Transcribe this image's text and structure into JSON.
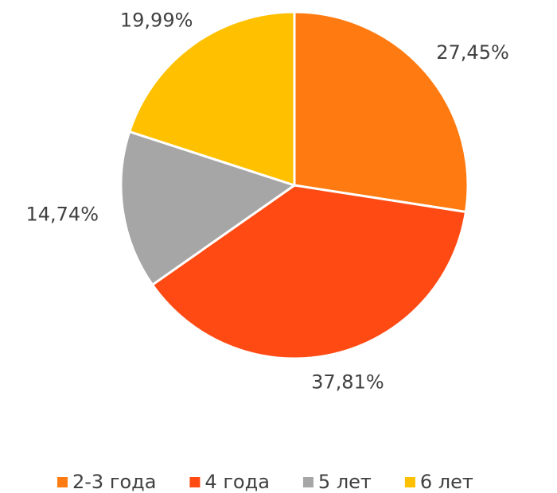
{
  "chart_data": {
    "type": "pie",
    "categories": [
      "2-3 года",
      "4 года",
      "5 лет",
      "6 лет"
    ],
    "values": [
      27.45,
      37.81,
      14.74,
      19.99
    ],
    "value_labels": [
      "27,45%",
      "37,81%",
      "14,74%",
      "19,99%"
    ],
    "colors": [
      "#FF7A10",
      "#FF4A14",
      "#A6A6A6",
      "#FFC000"
    ],
    "legend": "bottom"
  }
}
